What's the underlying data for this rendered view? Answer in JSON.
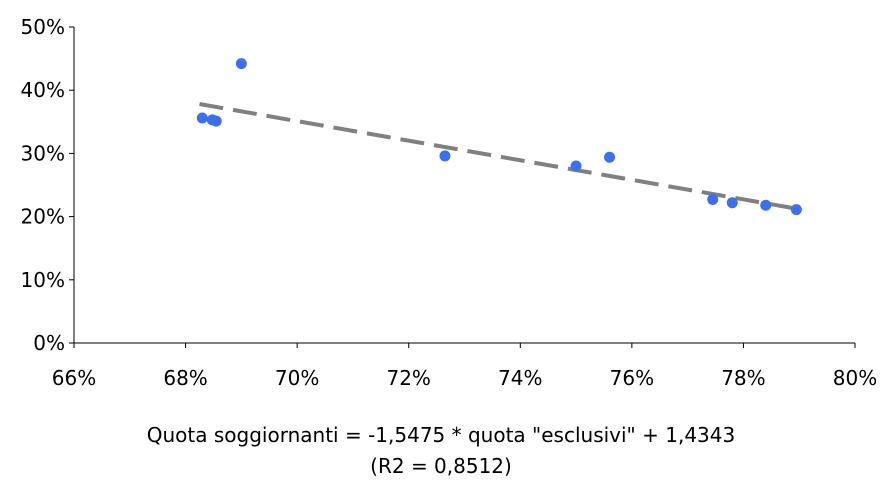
{
  "chart_data": {
    "type": "scatter",
    "title": "",
    "xlabel": "",
    "ylabel": "",
    "xlim": [
      0.66,
      0.8
    ],
    "ylim": [
      0.0,
      0.5
    ],
    "x_ticks": [
      0.66,
      0.68,
      0.7,
      0.72,
      0.74,
      0.76,
      0.78,
      0.8
    ],
    "x_tick_labels": [
      "66%",
      "68%",
      "70%",
      "72%",
      "74%",
      "76%",
      "78%",
      "80%"
    ],
    "y_ticks": [
      0.0,
      0.1,
      0.2,
      0.3,
      0.4,
      0.5
    ],
    "y_tick_labels": [
      "0%",
      "10%",
      "20%",
      "30%",
      "40%",
      "50%"
    ],
    "grid": false,
    "legend": "none",
    "series": [
      {
        "x": [
          0.683,
          0.6848,
          0.6855,
          0.69,
          0.7265,
          0.75,
          0.756,
          0.7745,
          0.778,
          0.784,
          0.7895
        ],
        "y": [
          0.356,
          0.353,
          0.351,
          0.442,
          0.296,
          0.28,
          0.294,
          0.227,
          0.222,
          0.218,
          0.211
        ],
        "color": "#3b6ff5"
      }
    ],
    "trendline": {
      "style": "dashed",
      "color": "#808080",
      "slope": -1.5475,
      "intercept": 1.4343,
      "x_range": [
        0.6825,
        0.7895
      ]
    },
    "annotations": [
      "Quota soggiornanti = -1,5475 * quota \"esclusivi\" + 1,4343",
      "(R2 = 0,8512)"
    ]
  }
}
